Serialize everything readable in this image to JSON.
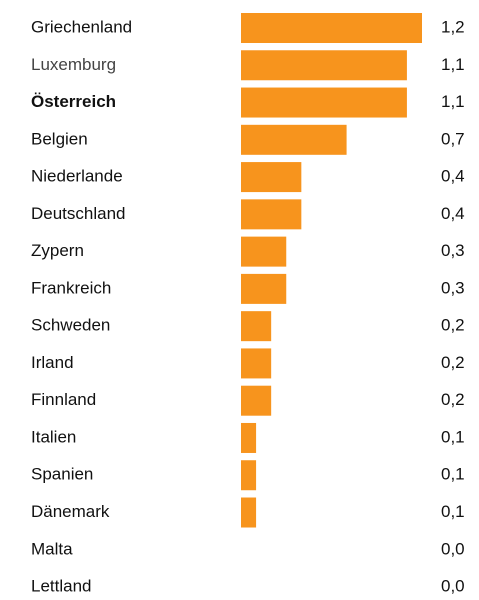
{
  "chart_data": {
    "type": "bar",
    "orientation": "horizontal",
    "color": "#f7941d",
    "categories": [
      "Griechenland",
      "Luxemburg",
      "Österreich",
      "Belgien",
      "Niederlande",
      "Deutschland",
      "Zypern",
      "Frankreich",
      "Schweden",
      "Irland",
      "Finnland",
      "Italien",
      "Spanien",
      "Dänemark",
      "Malta",
      "Lettland"
    ],
    "values": [
      1.2,
      1.1,
      1.1,
      0.7,
      0.4,
      0.4,
      0.3,
      0.3,
      0.2,
      0.2,
      0.2,
      0.1,
      0.1,
      0.1,
      0.0,
      0.0
    ],
    "value_labels": [
      "1,2",
      "1,1",
      "1,1",
      "0,7",
      "0,4",
      "0,4",
      "0,3",
      "0,3",
      "0,2",
      "0,2",
      "0,2",
      "0,1",
      "0,1",
      "0,1",
      "0,0",
      "0,0"
    ]
  }
}
